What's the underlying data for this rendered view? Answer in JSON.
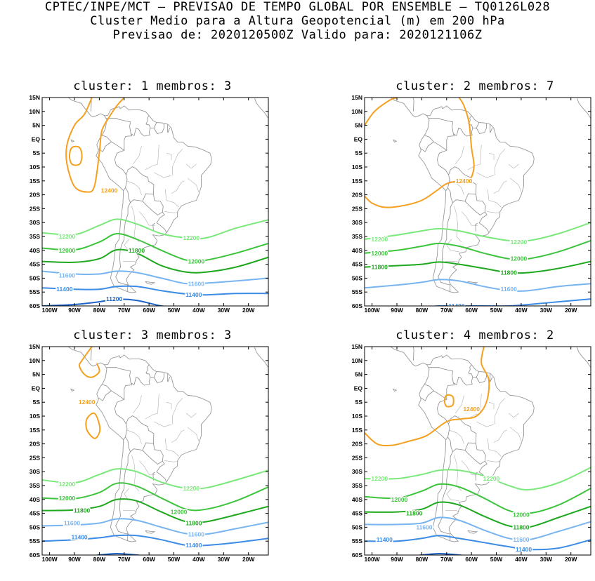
{
  "header": {
    "line1": "CPTEC/INPE/MCT – PREVISAO DE TEMPO GLOBAL POR ENSEMBLE – TQ0126L028",
    "line2": "Cluster Medio para a Altura Geopotencial (m) em 200 hPa",
    "line3": "Previsao de: 2020120500Z    Valido para: 2020121106Z"
  },
  "axes": {
    "lat_ticks": [
      "15N",
      "10N",
      "5N",
      "EQ",
      "5S",
      "10S",
      "15S",
      "20S",
      "25S",
      "30S",
      "35S",
      "40S",
      "45S",
      "50S",
      "55S",
      "60S"
    ],
    "lon_ticks": [
      "100W",
      "90W",
      "80W",
      "70W",
      "60W",
      "50W",
      "40W",
      "30W",
      "20W"
    ]
  },
  "colors": {
    "c12400": "#f5a020",
    "c12200": "#7ae87a",
    "c12000": "#3cc43c",
    "c11800": "#1ea81e",
    "c11600": "#78b4f0",
    "c11400": "#3c8ce6",
    "c11200": "#1e64c8",
    "coast": "#999999"
  },
  "panels": [
    {
      "title": "cluster: 1   membros: 3",
      "labels": [
        {
          "text": "12400",
          "lon": -76,
          "lat": -18.5,
          "c": "c12400"
        },
        {
          "text": "12200",
          "lon": -93,
          "lat": -35,
          "c": "c12200"
        },
        {
          "text": "12200",
          "lon": -43,
          "lat": -35.5,
          "c": "c12200"
        },
        {
          "text": "12000",
          "lon": -93,
          "lat": -40,
          "c": "c12000"
        },
        {
          "text": "11800",
          "lon": -65,
          "lat": -40,
          "c": "c11800"
        },
        {
          "text": "12000",
          "lon": -41,
          "lat": -44,
          "c": "c12000"
        },
        {
          "text": "11600",
          "lon": -93,
          "lat": -49,
          "c": "c11600"
        },
        {
          "text": "11600",
          "lon": -41,
          "lat": -52,
          "c": "c11600"
        },
        {
          "text": "11400",
          "lon": -94,
          "lat": -54,
          "c": "c11400"
        },
        {
          "text": "11400",
          "lon": -42,
          "lat": -56,
          "c": "c11400"
        },
        {
          "text": "11200",
          "lon": -74,
          "lat": -57.5,
          "c": "c11200"
        }
      ]
    },
    {
      "title": "cluster: 2   membros: 7",
      "labels": [
        {
          "text": "12400",
          "lon": -63,
          "lat": -15,
          "c": "c12400"
        },
        {
          "text": "12200",
          "lon": -97,
          "lat": -36,
          "c": "c12200"
        },
        {
          "text": "12200",
          "lon": -41,
          "lat": -37,
          "c": "c12200"
        },
        {
          "text": "12000",
          "lon": -97,
          "lat": -41,
          "c": "c12000"
        },
        {
          "text": "12000",
          "lon": -41,
          "lat": -43,
          "c": "c12000"
        },
        {
          "text": "11800",
          "lon": -97,
          "lat": -46,
          "c": "c11800"
        },
        {
          "text": "11800",
          "lon": -45,
          "lat": -48,
          "c": "c11800"
        },
        {
          "text": "11600",
          "lon": -45,
          "lat": -54,
          "c": "c11600"
        },
        {
          "text": "11400",
          "lon": -66,
          "lat": -60,
          "c": "c11400"
        }
      ]
    },
    {
      "title": "cluster: 3   membros: 3",
      "labels": [
        {
          "text": "12400",
          "lon": -85,
          "lat": -5,
          "c": "c12400"
        },
        {
          "text": "12200",
          "lon": -93,
          "lat": -34.5,
          "c": "c12200"
        },
        {
          "text": "12200",
          "lon": -43,
          "lat": -36,
          "c": "c12200"
        },
        {
          "text": "12000",
          "lon": -93,
          "lat": -39.5,
          "c": "c12000"
        },
        {
          "text": "11800",
          "lon": -87,
          "lat": -44,
          "c": "c11800"
        },
        {
          "text": "12000",
          "lon": -48,
          "lat": -44.5,
          "c": "c12000"
        },
        {
          "text": "11600",
          "lon": -91,
          "lat": -48.5,
          "c": "c11600"
        },
        {
          "text": "11800",
          "lon": -42,
          "lat": -48.5,
          "c": "c11800"
        },
        {
          "text": "11600",
          "lon": -41,
          "lat": -52.5,
          "c": "c11600"
        },
        {
          "text": "11400",
          "lon": -88,
          "lat": -53.5,
          "c": "c11400"
        },
        {
          "text": "11400",
          "lon": -42,
          "lat": -56.5,
          "c": "c11400"
        }
      ]
    },
    {
      "title": "cluster: 4   membros: 2",
      "labels": [
        {
          "text": "12400",
          "lon": -60,
          "lat": -7.5,
          "c": "c12400"
        },
        {
          "text": "12200",
          "lon": -97,
          "lat": -32.5,
          "c": "c12200"
        },
        {
          "text": "12200",
          "lon": -52,
          "lat": -32.5,
          "c": "c12200"
        },
        {
          "text": "12000",
          "lon": -89,
          "lat": -40,
          "c": "c12000"
        },
        {
          "text": "11800",
          "lon": -83,
          "lat": -45,
          "c": "c11800"
        },
        {
          "text": "12000",
          "lon": -40,
          "lat": -45.5,
          "c": "c12000"
        },
        {
          "text": "11600",
          "lon": -79,
          "lat": -50,
          "c": "c11600"
        },
        {
          "text": "11800",
          "lon": -40,
          "lat": -50,
          "c": "c11800"
        },
        {
          "text": "11400",
          "lon": -95,
          "lat": -54.5,
          "c": "c11400"
        },
        {
          "text": "11600",
          "lon": -40,
          "lat": -54.5,
          "c": "c11600"
        },
        {
          "text": "11400",
          "lon": -39,
          "lat": -58,
          "c": "c11400"
        }
      ]
    }
  ]
}
